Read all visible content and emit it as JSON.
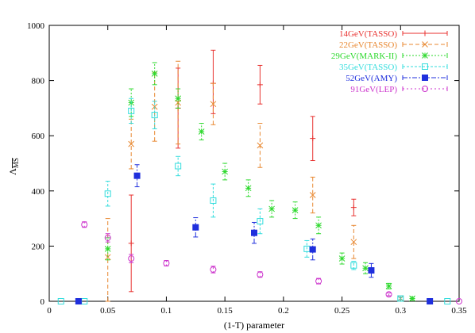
{
  "chart_data": {
    "type": "scatter",
    "title": "",
    "xlabel": "(1-T) parameter",
    "ylabel": "Λ",
    "ylabel_sub": "MS",
    "xlim": [
      0,
      0.35
    ],
    "ylim": [
      0,
      1000
    ],
    "xticks": [
      0,
      0.05,
      0.1,
      0.15,
      0.2,
      0.25,
      0.3,
      0.35
    ],
    "yticks": [
      0,
      200,
      400,
      600,
      800,
      1000
    ],
    "legend_position": "top-right",
    "grid": false,
    "series": [
      {
        "name": "14GeV(TASSO)",
        "color": "#e8312f",
        "marker": "plus",
        "dash": "",
        "points": [
          {
            "x": 0.07,
            "y": 210,
            "lo": 35,
            "hi": 385
          },
          {
            "x": 0.11,
            "y": 700,
            "lo": 555,
            "hi": 845
          },
          {
            "x": 0.14,
            "y": 790,
            "lo": 680,
            "hi": 910
          },
          {
            "x": 0.18,
            "y": 785,
            "lo": 715,
            "hi": 855
          },
          {
            "x": 0.225,
            "y": 590,
            "lo": 510,
            "hi": 670
          },
          {
            "x": 0.26,
            "y": 340,
            "lo": 310,
            "hi": 370
          }
        ]
      },
      {
        "name": "22GeV(TASSO)",
        "color": "#e8872f",
        "marker": "x",
        "dash": "5,3",
        "points": [
          {
            "x": 0.05,
            "y": 160,
            "lo": 0,
            "hi": 300
          },
          {
            "x": 0.07,
            "y": 570,
            "lo": 480,
            "hi": 660
          },
          {
            "x": 0.09,
            "y": 705,
            "lo": 580,
            "hi": 830
          },
          {
            "x": 0.11,
            "y": 720,
            "lo": 570,
            "hi": 870
          },
          {
            "x": 0.14,
            "y": 715,
            "lo": 640,
            "hi": 790
          },
          {
            "x": 0.18,
            "y": 565,
            "lo": 485,
            "hi": 645
          },
          {
            "x": 0.225,
            "y": 385,
            "lo": 320,
            "hi": 450
          },
          {
            "x": 0.26,
            "y": 215,
            "lo": 155,
            "hi": 275
          },
          {
            "x": 0.3,
            "y": 10,
            "lo": 0,
            "hi": 20
          }
        ]
      },
      {
        "name": "29GeV(MARK-II)",
        "color": "#2ed92e",
        "marker": "star",
        "dash": "2,2",
        "points": [
          {
            "x": 0.05,
            "y": 190,
            "lo": 150,
            "hi": 230
          },
          {
            "x": 0.07,
            "y": 720,
            "lo": 670,
            "hi": 770
          },
          {
            "x": 0.09,
            "y": 825,
            "lo": 785,
            "hi": 865
          },
          {
            "x": 0.11,
            "y": 735,
            "lo": 700,
            "hi": 770
          },
          {
            "x": 0.13,
            "y": 615,
            "lo": 585,
            "hi": 645
          },
          {
            "x": 0.15,
            "y": 470,
            "lo": 440,
            "hi": 500
          },
          {
            "x": 0.17,
            "y": 410,
            "lo": 380,
            "hi": 440
          },
          {
            "x": 0.19,
            "y": 335,
            "lo": 305,
            "hi": 365
          },
          {
            "x": 0.21,
            "y": 330,
            "lo": 300,
            "hi": 360
          },
          {
            "x": 0.23,
            "y": 275,
            "lo": 245,
            "hi": 305
          },
          {
            "x": 0.25,
            "y": 155,
            "lo": 135,
            "hi": 175
          },
          {
            "x": 0.27,
            "y": 120,
            "lo": 100,
            "hi": 140
          },
          {
            "x": 0.29,
            "y": 55,
            "lo": 45,
            "hi": 65
          },
          {
            "x": 0.31,
            "y": 10,
            "lo": 5,
            "hi": 15
          }
        ]
      },
      {
        "name": "35GeV(TASSO)",
        "color": "#33dddd",
        "marker": "square-open",
        "dash": "3,2",
        "points": [
          {
            "x": 0.01,
            "y": 0,
            "lo": 0,
            "hi": 0
          },
          {
            "x": 0.03,
            "y": 0,
            "lo": 0,
            "hi": 0
          },
          {
            "x": 0.05,
            "y": 390,
            "lo": 345,
            "hi": 435
          },
          {
            "x": 0.07,
            "y": 690,
            "lo": 645,
            "hi": 735
          },
          {
            "x": 0.09,
            "y": 675,
            "lo": 625,
            "hi": 725
          },
          {
            "x": 0.11,
            "y": 490,
            "lo": 455,
            "hi": 525
          },
          {
            "x": 0.14,
            "y": 365,
            "lo": 305,
            "hi": 425
          },
          {
            "x": 0.18,
            "y": 290,
            "lo": 245,
            "hi": 335
          },
          {
            "x": 0.22,
            "y": 190,
            "lo": 160,
            "hi": 220
          },
          {
            "x": 0.26,
            "y": 130,
            "lo": 115,
            "hi": 145
          },
          {
            "x": 0.3,
            "y": 10,
            "lo": 5,
            "hi": 15
          },
          {
            "x": 0.34,
            "y": 0,
            "lo": 0,
            "hi": 0
          }
        ]
      },
      {
        "name": "52GeV(AMY)",
        "color": "#1f2fdd",
        "marker": "square-filled",
        "dash": "6,2,2,2",
        "points": [
          {
            "x": 0.025,
            "y": 0,
            "lo": 0,
            "hi": 0
          },
          {
            "x": 0.075,
            "y": 455,
            "lo": 415,
            "hi": 495
          },
          {
            "x": 0.125,
            "y": 268,
            "lo": 233,
            "hi": 303
          },
          {
            "x": 0.175,
            "y": 248,
            "lo": 210,
            "hi": 286
          },
          {
            "x": 0.225,
            "y": 188,
            "lo": 150,
            "hi": 226
          },
          {
            "x": 0.275,
            "y": 112,
            "lo": 87,
            "hi": 137
          },
          {
            "x": 0.325,
            "y": 0,
            "lo": 0,
            "hi": 0
          }
        ]
      },
      {
        "name": "91GeV(LEP)",
        "color": "#cc33cc",
        "marker": "circle-open",
        "dash": "2,3",
        "points": [
          {
            "x": 0.03,
            "y": 278,
            "lo": 268,
            "hi": 288
          },
          {
            "x": 0.05,
            "y": 230,
            "lo": 215,
            "hi": 245
          },
          {
            "x": 0.07,
            "y": 155,
            "lo": 140,
            "hi": 170
          },
          {
            "x": 0.1,
            "y": 138,
            "lo": 128,
            "hi": 148
          },
          {
            "x": 0.14,
            "y": 115,
            "lo": 103,
            "hi": 127
          },
          {
            "x": 0.18,
            "y": 97,
            "lo": 87,
            "hi": 107
          },
          {
            "x": 0.23,
            "y": 73,
            "lo": 63,
            "hi": 83
          },
          {
            "x": 0.29,
            "y": 25,
            "lo": 20,
            "hi": 30
          },
          {
            "x": 0.35,
            "y": 0,
            "lo": 0,
            "hi": 0
          }
        ]
      }
    ]
  }
}
